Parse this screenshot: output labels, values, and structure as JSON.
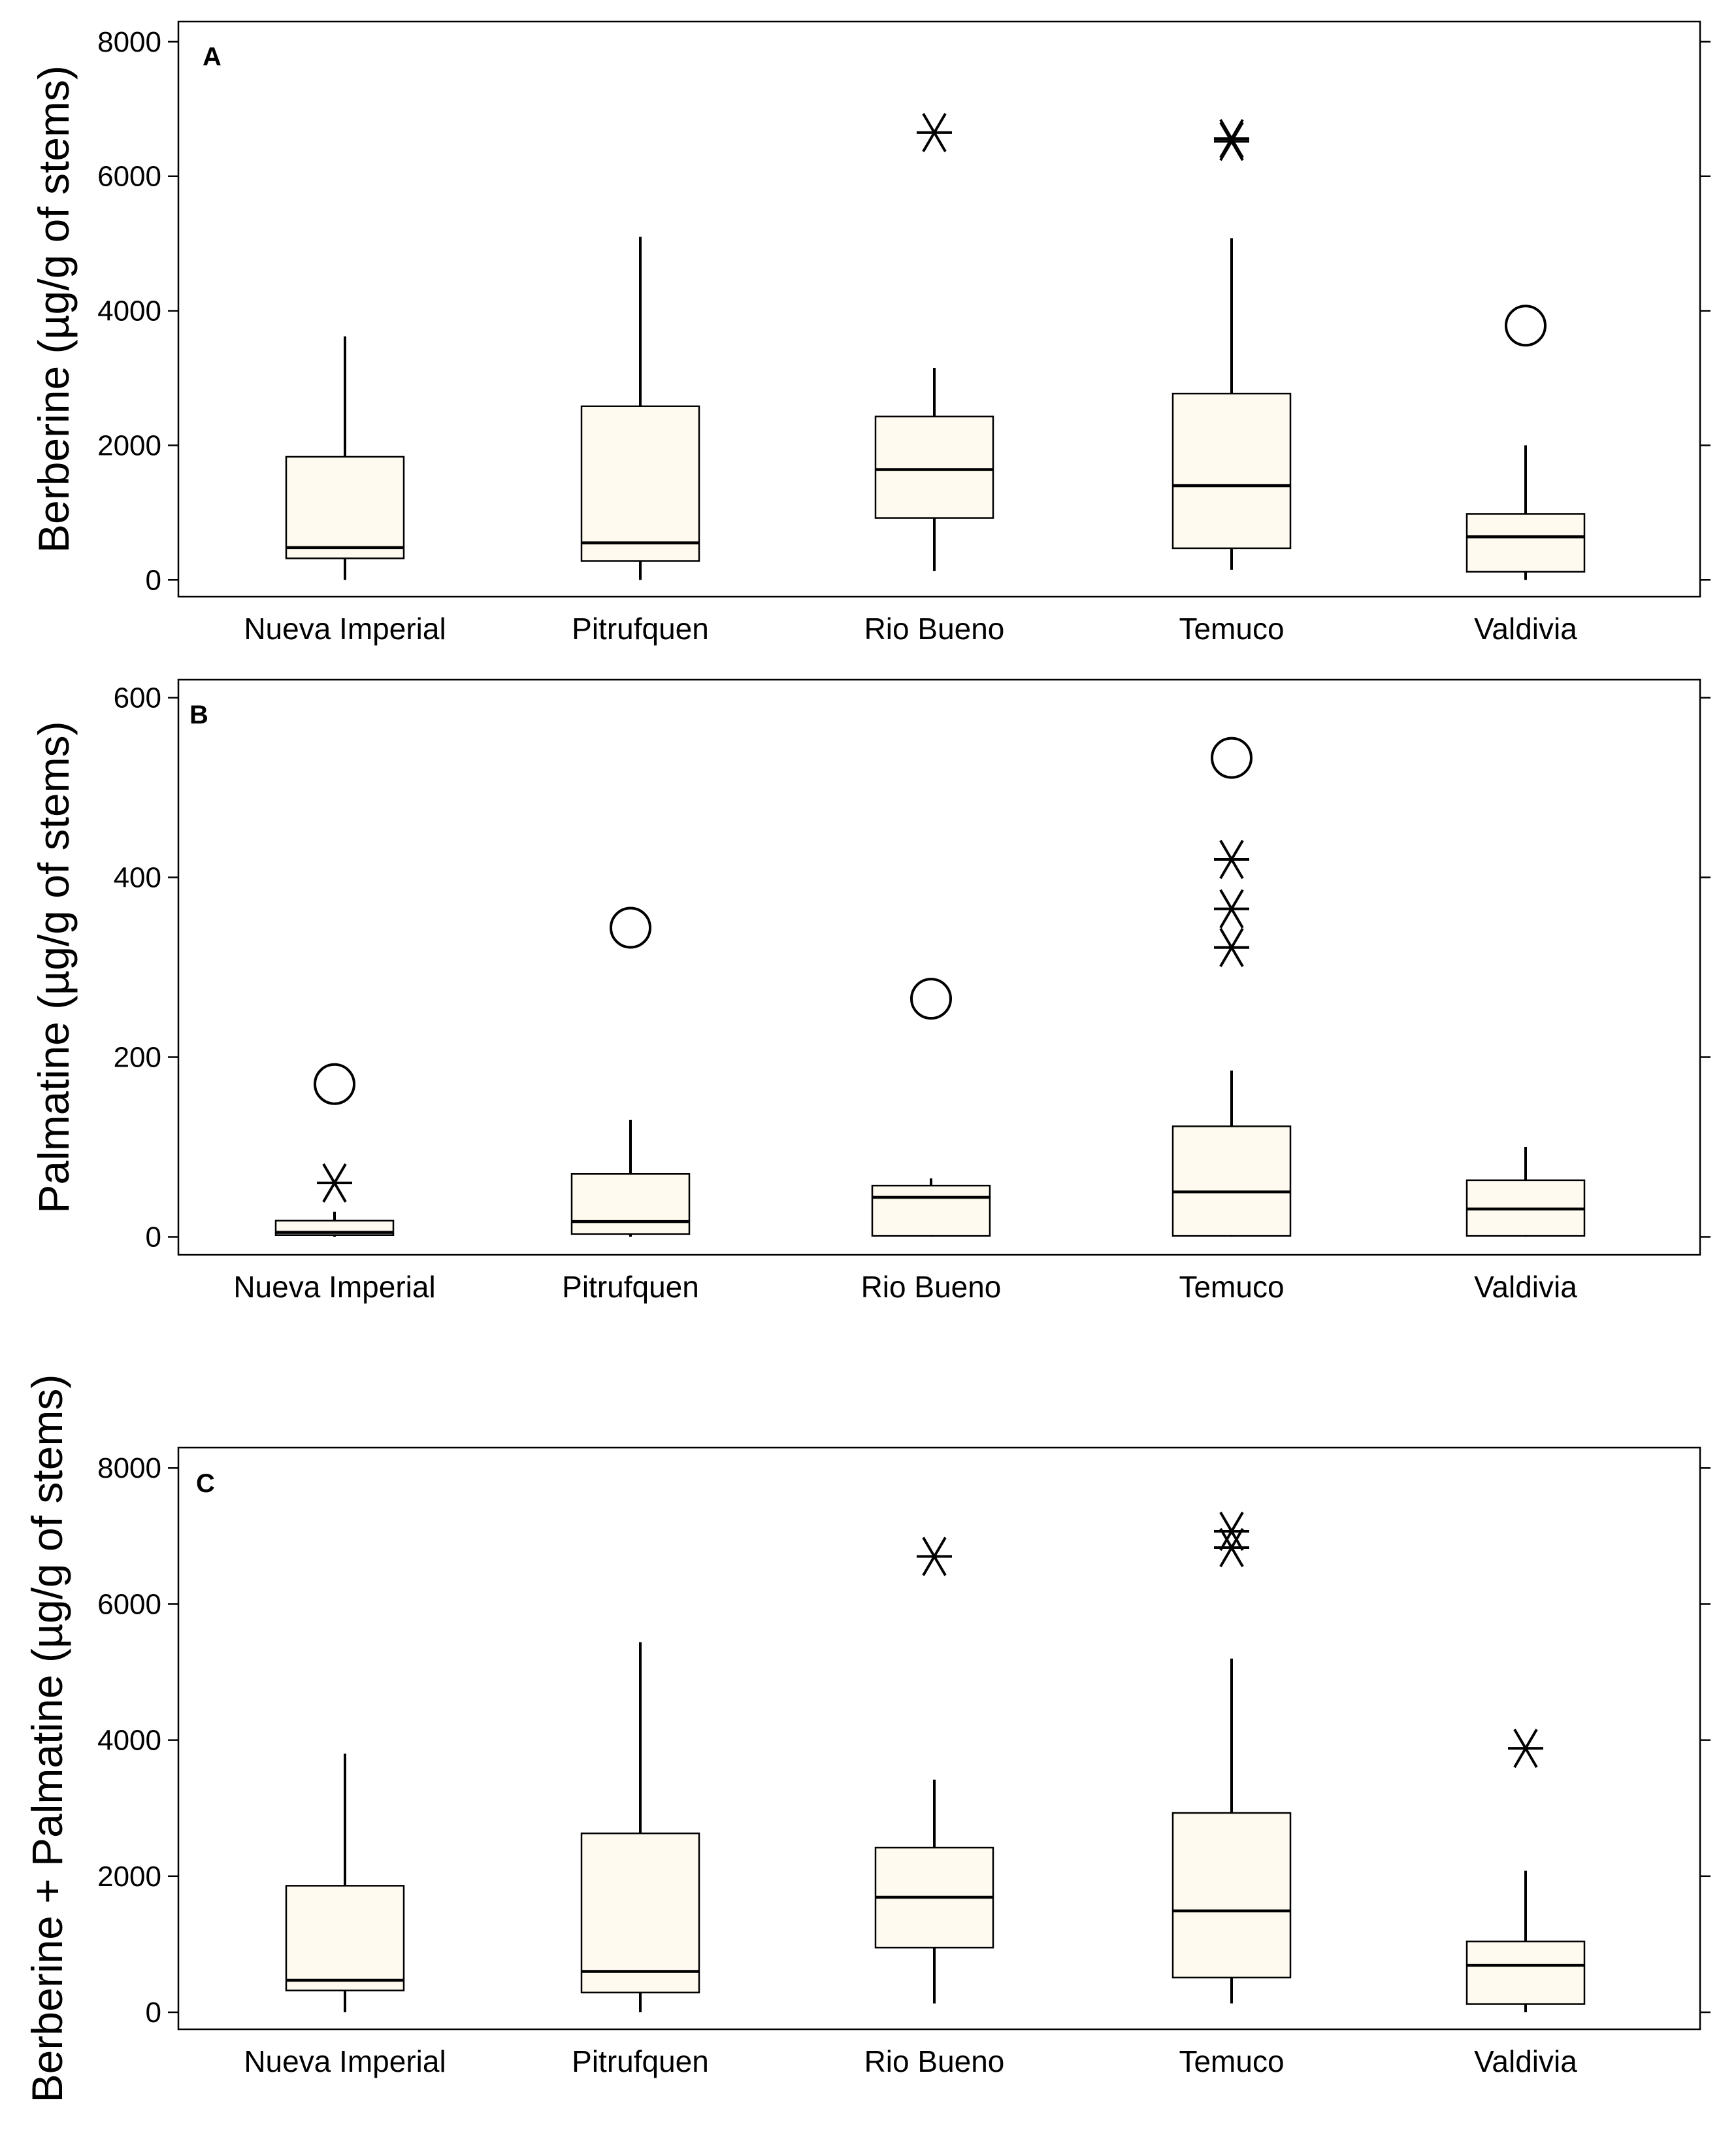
{
  "chart_data": [
    {
      "type": "box",
      "panel": "A",
      "ylabel": "Berberine  (µg/g of stems)",
      "ylim": [
        -250,
        8300
      ],
      "yticks": [
        0,
        2000,
        4000,
        6000,
        8000
      ],
      "categories": [
        "Nueva Imperial",
        "Pitrufquen",
        "Rio Bueno",
        "Temuco",
        "Valdivia"
      ],
      "boxes": [
        {
          "whisker_low": 0,
          "q1": 320,
          "median": 480,
          "q3": 1830,
          "whisker_high": 3620,
          "outliers": [],
          "extremes": []
        },
        {
          "whisker_low": 0,
          "q1": 280,
          "median": 550,
          "q3": 2580,
          "whisker_high": 5100,
          "outliers": [],
          "extremes": []
        },
        {
          "whisker_low": 130,
          "q1": 920,
          "median": 1640,
          "q3": 2430,
          "whisker_high": 3150,
          "outliers": [],
          "extremes": [
            6650
          ]
        },
        {
          "whisker_low": 150,
          "q1": 470,
          "median": 1400,
          "q3": 2770,
          "whisker_high": 5080,
          "outliers": [],
          "extremes": [
            6520,
            6560
          ]
        },
        {
          "whisker_low": 0,
          "q1": 120,
          "median": 640,
          "q3": 980,
          "whisker_high": 2000,
          "outliers": [
            3780
          ],
          "extremes": []
        }
      ]
    },
    {
      "type": "box",
      "panel": "B",
      "ylabel": "Palmatine (µg/g of stems)",
      "ylim": [
        -20,
        620
      ],
      "yticks": [
        0,
        200,
        400,
        600
      ],
      "categories": [
        "Nueva Imperial",
        "Pitrufquen",
        "Rio Bueno",
        "Temuco",
        "Valdivia"
      ],
      "boxes": [
        {
          "whisker_low": 0,
          "q1": 2,
          "median": 5,
          "q3": 18,
          "whisker_high": 28,
          "outliers": [
            170
          ],
          "extremes": [
            60
          ]
        },
        {
          "whisker_low": 0,
          "q1": 3,
          "median": 17,
          "q3": 70,
          "whisker_high": 130,
          "outliers": [
            344
          ],
          "extremes": []
        },
        {
          "whisker_low": 0,
          "q1": 1,
          "median": 44,
          "q3": 57,
          "whisker_high": 65,
          "outliers": [
            265
          ],
          "extremes": []
        },
        {
          "whisker_low": 0,
          "q1": 1,
          "median": 50,
          "q3": 123,
          "whisker_high": 185,
          "outliers": [
            533
          ],
          "extremes": [
            322,
            365,
            420
          ]
        },
        {
          "whisker_low": 0,
          "q1": 1,
          "median": 31,
          "q3": 63,
          "whisker_high": 100,
          "outliers": [],
          "extremes": []
        }
      ]
    },
    {
      "type": "box",
      "panel": "C",
      "ylabel": "Berberine + Palmatine (µg/g of stems)",
      "ylim": [
        -250,
        8300
      ],
      "yticks": [
        0,
        2000,
        4000,
        6000,
        8000
      ],
      "categories": [
        "Nueva Imperial",
        "Pitrufquen",
        "Rio Bueno",
        "Temuco",
        "Valdivia"
      ],
      "boxes": [
        {
          "whisker_low": 0,
          "q1": 320,
          "median": 470,
          "q3": 1860,
          "whisker_high": 3800,
          "outliers": [],
          "extremes": []
        },
        {
          "whisker_low": 0,
          "q1": 290,
          "median": 600,
          "q3": 2630,
          "whisker_high": 5440,
          "outliers": [],
          "extremes": []
        },
        {
          "whisker_low": 130,
          "q1": 950,
          "median": 1690,
          "q3": 2420,
          "whisker_high": 3420,
          "outliers": [],
          "extremes": [
            6700
          ]
        },
        {
          "whisker_low": 130,
          "q1": 510,
          "median": 1490,
          "q3": 2930,
          "whisker_high": 5200,
          "outliers": [],
          "extremes": [
            6830,
            7070
          ]
        },
        {
          "whisker_low": 0,
          "q1": 120,
          "median": 690,
          "q3": 1040,
          "whisker_high": 2080,
          "outliers": [],
          "extremes": [
            3880
          ]
        }
      ]
    }
  ],
  "style": {
    "box_fill": "#fffaf0",
    "stroke": "#000000"
  }
}
